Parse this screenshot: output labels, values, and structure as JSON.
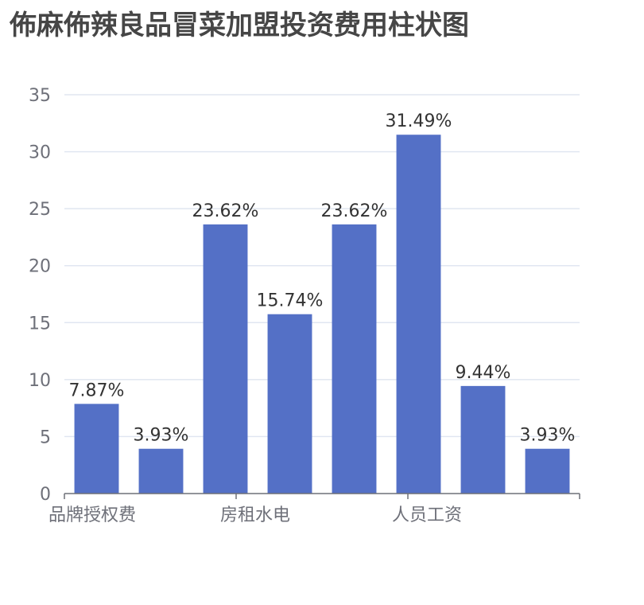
{
  "chart_data": {
    "type": "bar",
    "title": "佈麻佈辣良品冒菜加盟投资费用柱状图",
    "xlabel": "",
    "ylabel": "",
    "ylim": [
      0,
      35
    ],
    "yticks": [
      "0",
      "5",
      "10",
      "15",
      "20",
      "25",
      "30",
      "35"
    ],
    "x_tick_labels": [
      "品牌授权费",
      "房租水电",
      "人员工资"
    ],
    "values": [
      7.87,
      3.93,
      23.62,
      15.74,
      23.62,
      31.49,
      9.44,
      3.93
    ],
    "value_labels": [
      "7.87%",
      "3.93%",
      "23.62%",
      "15.74%",
      "23.62%",
      "31.49%",
      "9.44%",
      "3.93%"
    ],
    "grid": true,
    "bar_color": "#5470c6"
  }
}
